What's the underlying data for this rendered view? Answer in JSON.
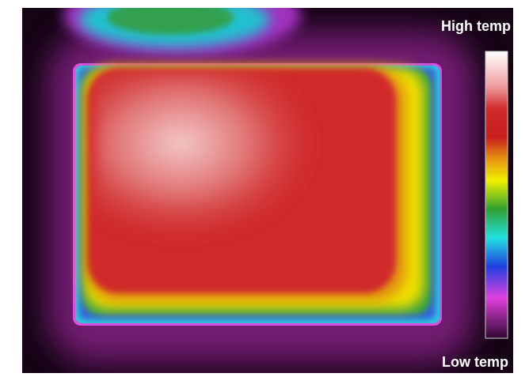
{
  "legend": {
    "high": "High temp",
    "low": "Low temp"
  }
}
